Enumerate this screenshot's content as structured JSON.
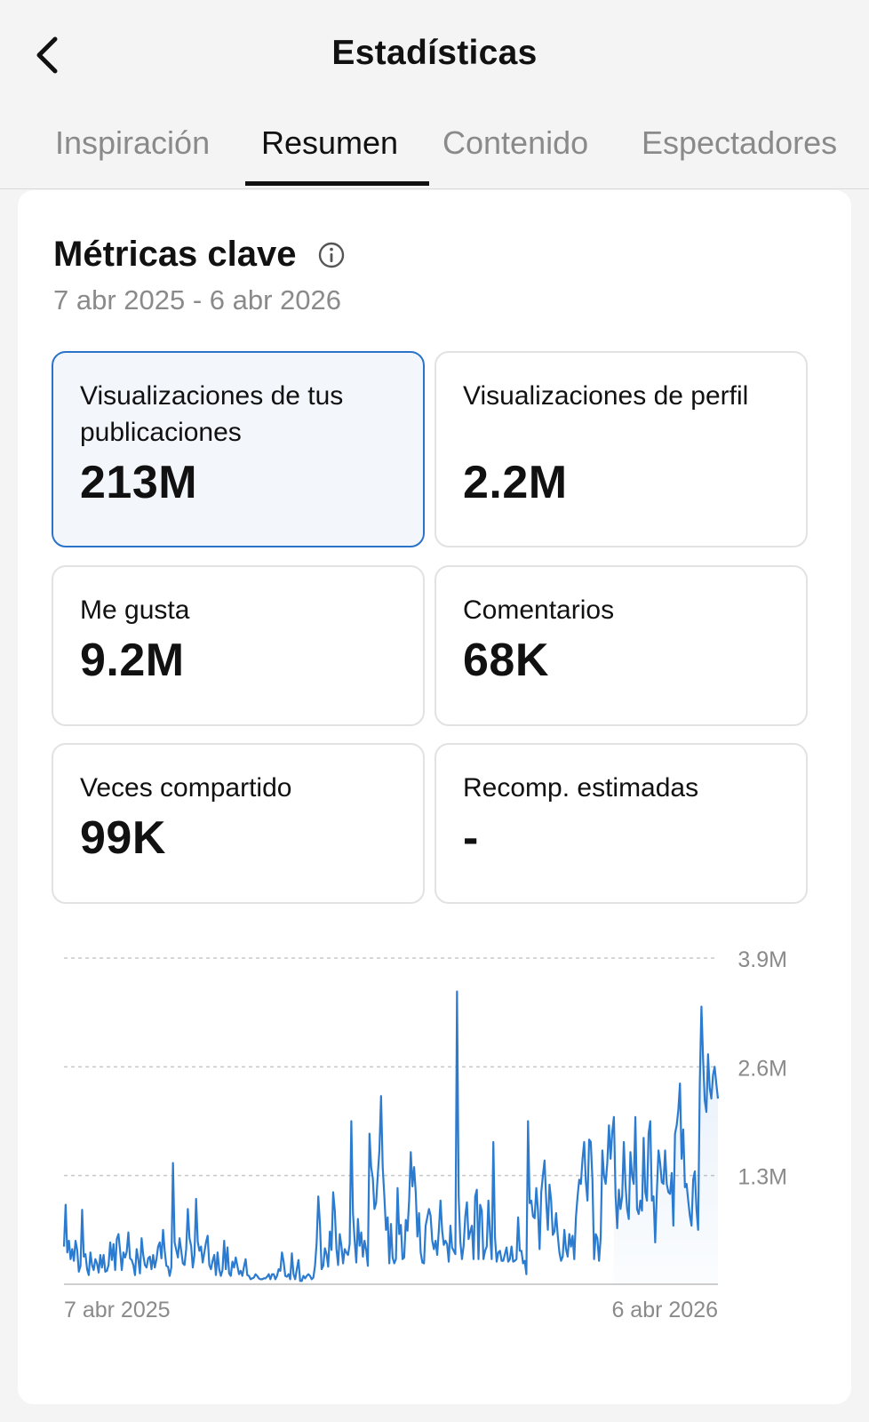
{
  "header": {
    "title": "Estadísticas",
    "back_icon": "chevron-left-icon"
  },
  "tabs": [
    {
      "label": "Inspiración",
      "active": false
    },
    {
      "label": "Resumen",
      "active": true
    },
    {
      "label": "Contenido",
      "active": false
    },
    {
      "label": "Espectadores",
      "active": false
    }
  ],
  "key_metrics": {
    "title": "Métricas clave",
    "info_icon": "info-icon",
    "date_range": "7 abr 2025 - 6 abr 2026",
    "cards": [
      {
        "label": "Visualizaciones de tus publicaciones",
        "value": "213M",
        "selected": true
      },
      {
        "label": "Visualizaciones de perfil",
        "value": "2.2M",
        "selected": false
      },
      {
        "label": "Me gusta",
        "value": "9.2M",
        "selected": false
      },
      {
        "label": "Comentarios",
        "value": "68K",
        "selected": false
      },
      {
        "label": "Veces compartido",
        "value": "99K",
        "selected": false
      },
      {
        "label": "Recomp. estimadas",
        "value": "-",
        "selected": false
      }
    ]
  },
  "colors": {
    "accent": "#2a73c8",
    "selected_bg": "#f3f7fc",
    "line": "#2b7bd0",
    "muted_text": "#8a8a8a"
  },
  "chart_data": {
    "type": "line",
    "x_start": "7 abr 2025",
    "x_end": "6 abr 2026",
    "xtick_labels": [
      "7 abr 2025",
      "6 abr 2026"
    ],
    "ytick_labels": [
      "3.9M",
      "2.6M",
      "1.3M"
    ],
    "ytick_values": [
      3900000,
      2600000,
      1300000
    ],
    "ylim": [
      0,
      3900000
    ],
    "grid": true,
    "series": [
      {
        "values": [
          450000,
          950000,
          380000,
          520000,
          300000,
          420000,
          280000,
          520000,
          410000,
          150000,
          220000,
          890000,
          330000,
          360000,
          180000,
          110000,
          380000,
          230000,
          170000,
          300000,
          250000,
          140000,
          350000,
          200000,
          350000,
          150000,
          160000,
          230000,
          500000,
          290000,
          480000,
          170000,
          540000,
          600000,
          400000,
          170000,
          380000,
          320000,
          390000,
          620000,
          310000,
          290000,
          230000,
          110000,
          420000,
          300000,
          130000,
          550000,
          350000,
          230000,
          200000,
          310000,
          330000,
          180000,
          350000,
          200000,
          300000,
          450000,
          500000,
          310000,
          650000,
          400000,
          220000,
          210000,
          100000,
          200000,
          1450000,
          500000,
          410000,
          320000,
          550000,
          400000,
          250000,
          230000,
          420000,
          900000,
          550000,
          460000,
          200000,
          350000,
          1020000,
          510000,
          400000,
          450000,
          260000,
          380000,
          500000,
          580000,
          230000,
          180000,
          280000,
          350000,
          110000,
          380000,
          180000,
          100000,
          170000,
          520000,
          180000,
          440000,
          130000,
          100000,
          270000,
          200000,
          320000,
          220000,
          120000,
          160000,
          100000,
          210000,
          300000,
          110000,
          100000,
          60000,
          70000,
          80000,
          120000,
          100000,
          70000,
          60000,
          60000,
          70000,
          70000,
          90000,
          120000,
          60000,
          120000,
          120000,
          60000,
          100000,
          180000,
          160000,
          380000,
          270000,
          100000,
          90000,
          120000,
          60000,
          370000,
          120000,
          60000,
          180000,
          290000,
          40000,
          40000,
          100000,
          70000,
          100000,
          120000,
          100000,
          60000,
          80000,
          220000,
          500000,
          1050000,
          720000,
          180000,
          220000,
          430000,
          360000,
          210000,
          630000,
          410000,
          1100000,
          880000,
          420000,
          230000,
          600000,
          460000,
          250000,
          420000,
          380000,
          350000,
          480000,
          1950000,
          850000,
          530000,
          260000,
          780000,
          460000,
          620000,
          330000,
          520000,
          410000,
          220000,
          1800000,
          1400000,
          1270000,
          900000,
          970000,
          1300000,
          1600000,
          2250000,
          1400000,
          1050000,
          650000,
          800000,
          250000,
          720000,
          320000,
          250000,
          300000,
          1150000,
          600000,
          710000,
          300000,
          320000,
          770000,
          640000,
          1000000,
          1580000,
          1170000,
          1400000,
          1100000,
          570000,
          850000,
          380000,
          260000,
          250000,
          700000,
          800000,
          900000,
          820000,
          520000,
          420000,
          520000,
          350000,
          650000,
          1000000,
          640000,
          470000,
          520000,
          480000,
          270000,
          700000,
          440000,
          400000,
          360000,
          3500000,
          1050000,
          510000,
          300000,
          460000,
          810000,
          980000,
          540000,
          630000,
          700000,
          300000,
          1050000,
          1130000,
          300000,
          950000,
          880000,
          300000,
          400000,
          450000,
          1000000,
          600000,
          300000,
          1700000,
          560000,
          270000,
          380000,
          400000,
          280000,
          280000,
          360000,
          440000,
          270000,
          300000,
          450000,
          270000,
          280000,
          300000,
          800000,
          400000,
          400000,
          250000,
          280000,
          120000,
          1950000,
          970000,
          1000000,
          810000,
          790000,
          1150000,
          890000,
          420000,
          1100000,
          1300000,
          1480000,
          1000000,
          650000,
          1190000,
          1000000,
          590000,
          630000,
          850000,
          580000,
          380000,
          280000,
          330000,
          650000,
          420000,
          330000,
          600000,
          450000,
          580000,
          300000,
          800000,
          1050000,
          1250000,
          1200000,
          1500000,
          1700000,
          1230000,
          1000000,
          1730000,
          1700000,
          1250000,
          300000,
          600000,
          550000,
          280000,
          560000,
          1600000,
          1300000,
          1200000,
          1450000,
          1900000,
          1500000,
          1820000,
          2000000,
          1070000,
          670000,
          1130000,
          900000,
          1050000,
          1700000,
          1200000,
          900000,
          780000,
          1580000,
          1300000,
          1200000,
          2000000,
          900000,
          840000,
          1000000,
          880000,
          1750000,
          1100000,
          1000000,
          1800000,
          1950000,
          1000000,
          1050000,
          500000,
          1100000,
          1600000,
          1450000,
          1220000,
          1200000,
          1600000,
          1200000,
          1100000,
          1080000,
          1330000,
          700000,
          1800000,
          1900000,
          2080000,
          2400000,
          1500000,
          1850000,
          1160000,
          1200000,
          1000000,
          820000,
          700000,
          1250000,
          1350000,
          900000,
          650000,
          2400000,
          3320000,
          2700000,
          2200000,
          2060000,
          2750000,
          2350000,
          2220000,
          2500000,
          2600000,
          2400000,
          2220000
        ]
      }
    ]
  }
}
